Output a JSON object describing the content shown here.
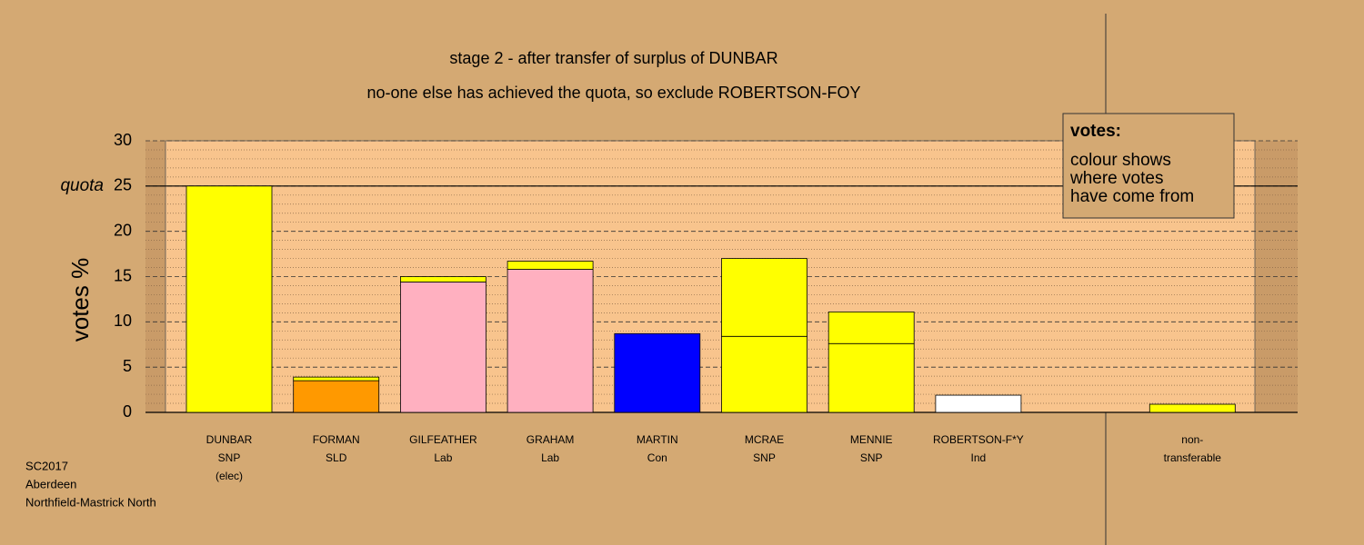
{
  "chart_data": {
    "type": "stacked-bar",
    "title": "stage 2 - after transfer of surplus of DUNBAR",
    "subtitle": "no-one else has achieved the quota, so exclude ROBERTSON-FOY",
    "ylabel": "votes %",
    "ylim": [
      0,
      30
    ],
    "yticks": [
      0,
      5,
      10,
      15,
      20,
      25,
      30
    ],
    "minor_yticks": [
      1,
      2,
      3,
      4,
      6,
      7,
      8,
      9,
      11,
      12,
      13,
      14,
      16,
      17,
      18,
      19,
      21,
      22,
      23,
      24,
      26,
      27,
      28,
      29
    ],
    "quota": {
      "value": 25,
      "label": "quota"
    },
    "labels": [
      [
        "DUNBAR",
        "SNP",
        "(elec)"
      ],
      [
        "FORMAN",
        "SLD"
      ],
      [
        "GILFEATHER",
        "Lab"
      ],
      [
        "GRAHAM",
        "Lab"
      ],
      [
        "MARTIN",
        "Con"
      ],
      [
        "MCRAE",
        "SNP"
      ],
      [
        "MENNIE",
        "SNP"
      ],
      [
        "ROBERTSON-F*Y",
        "Ind"
      ],
      [
        "non-",
        "transferable"
      ]
    ],
    "series": [
      {
        "colors": [
          "#ffff00",
          "#ff9900",
          "#ffb0c0",
          "#ffb0c0",
          "#0000ff",
          "#ffff00",
          "#ffff00",
          "#ffffff",
          "#ffff00"
        ],
        "values": [
          25,
          3.5,
          14.4,
          15.8,
          8.7,
          8.4,
          7.6,
          1.9,
          0.9
        ]
      },
      {
        "color": "#ffff00",
        "values": [
          0,
          0.4,
          0.6,
          0.9,
          0,
          8.6,
          3.5,
          0,
          0
        ]
      }
    ],
    "legend_box": {
      "title": "votes:",
      "lines": [
        "colour shows",
        "where votes",
        "have come from"
      ]
    },
    "source_lines": [
      "SC2017",
      "Aberdeen",
      "Northfield-Mastrick North"
    ]
  }
}
